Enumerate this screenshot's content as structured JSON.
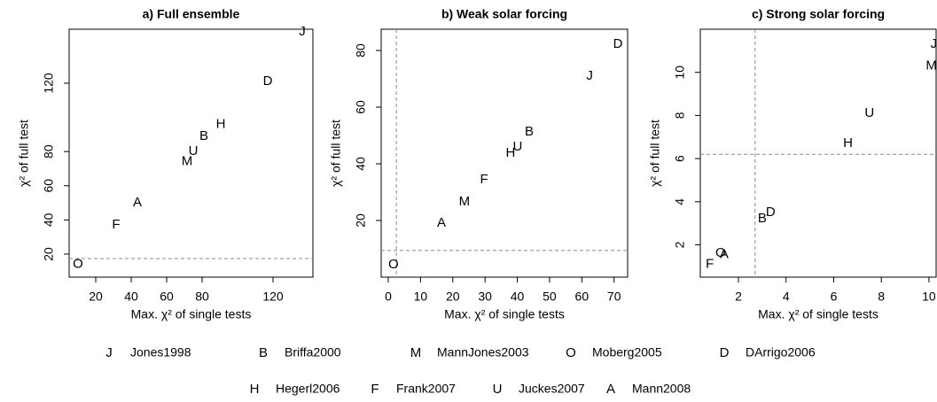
{
  "chart_data": [
    {
      "type": "scatter",
      "title": "a) Full ensemble",
      "xlabel": "Max. χ² of single tests",
      "ylabel": "χ² of full test",
      "xlim": [
        5,
        142.5
      ],
      "ylim": [
        6.5,
        151.6
      ],
      "xticks": [
        20,
        40,
        60,
        80,
        120
      ],
      "yticks": [
        20,
        40,
        60,
        80,
        120
      ],
      "hline": 17.4,
      "series": [
        {
          "name": "Jones1998",
          "marker": "J",
          "color": "#e8141c",
          "x": [
            136.5
          ],
          "values": [
            150
          ]
        },
        {
          "name": "Briffa2000",
          "marker": "B",
          "color": "#e7298a",
          "x": [
            81
          ],
          "values": [
            89
          ]
        },
        {
          "name": "MannJones2003",
          "marker": "M",
          "color": "#f5873a",
          "x": [
            71.5
          ],
          "values": [
            74
          ]
        },
        {
          "name": "Moberg2005",
          "marker": "O",
          "color": "#a6761d",
          "x": [
            10
          ],
          "values": [
            14
          ]
        },
        {
          "name": "DArrigo2006",
          "marker": "D",
          "color": "#1a9e1a",
          "x": [
            117
          ],
          "values": [
            121
          ]
        },
        {
          "name": "Hegerl2006",
          "marker": "H",
          "color": "#b85ce8",
          "x": [
            90.5
          ],
          "values": [
            96
          ]
        },
        {
          "name": "Frank2007",
          "marker": "F",
          "color": "#8a8a8a",
          "x": [
            31.5
          ],
          "values": [
            37
          ]
        },
        {
          "name": "Juckes2007",
          "marker": "U",
          "color": "#000000",
          "x": [
            75
          ],
          "values": [
            80
          ]
        },
        {
          "name": "Mann2008",
          "marker": "A",
          "color": "#1a1ad6",
          "x": [
            43.5
          ],
          "values": [
            50
          ]
        }
      ]
    },
    {
      "type": "scatter",
      "title": "b) Weak solar forcing",
      "xlabel": "Max. χ² of single tests",
      "ylabel": "χ² of full test",
      "xlim": [
        -2.2,
        74.2
      ],
      "ylim": [
        0,
        87.5
      ],
      "xticks": [
        0,
        10,
        20,
        30,
        40,
        50,
        60,
        70
      ],
      "yticks": [
        20,
        40,
        60,
        80
      ],
      "hline": 9.4,
      "vline": 2.5,
      "series": [
        {
          "name": "Jones1998",
          "marker": "J",
          "color": "#e8141c",
          "x": [
            62.4
          ],
          "values": [
            70.9
          ]
        },
        {
          "name": "Briffa2000",
          "marker": "B",
          "color": "#e7298a",
          "x": [
            43.7
          ],
          "values": [
            51.2
          ]
        },
        {
          "name": "MannJones2003",
          "marker": "M",
          "color": "#f5873a",
          "x": [
            23.6
          ],
          "values": [
            26.6
          ]
        },
        {
          "name": "Moberg2005",
          "marker": "O",
          "color": "#a6761d",
          "x": [
            1.6
          ],
          "values": [
            4.4
          ]
        },
        {
          "name": "DArrigo2006",
          "marker": "D",
          "color": "#1a9e1a",
          "x": [
            71.2
          ],
          "values": [
            82.2
          ]
        },
        {
          "name": "Hegerl2006",
          "marker": "H",
          "color": "#b85ce8",
          "x": [
            37.9
          ],
          "values": [
            43.8
          ]
        },
        {
          "name": "Frank2007",
          "marker": "F",
          "color": "#8a8a8a",
          "x": [
            29.7
          ],
          "values": [
            34.4
          ]
        },
        {
          "name": "Juckes2007",
          "marker": "U",
          "color": "#000000",
          "x": [
            40.1
          ],
          "values": [
            45.9
          ]
        },
        {
          "name": "Mann2008",
          "marker": "A",
          "color": "#1a1ad6",
          "x": [
            16.5
          ],
          "values": [
            19
          ]
        }
      ]
    },
    {
      "type": "scatter",
      "title": "c) Strong solar forcing",
      "xlabel": "Max. χ² of single tests",
      "ylabel": "χ² of full test",
      "xlim": [
        0.4,
        10.3
      ],
      "ylim": [
        0.5,
        12
      ],
      "xticks": [
        2,
        4,
        6,
        8,
        10
      ],
      "yticks": [
        2,
        4,
        6,
        8,
        10
      ],
      "hline": 6.2,
      "vline": 2.7,
      "series": [
        {
          "name": "Jones1998",
          "marker": "J",
          "color": "#e8141c",
          "x": [
            10.2
          ],
          "values": [
            11.3
          ]
        },
        {
          "name": "Briffa2000",
          "marker": "B",
          "color": "#e7298a",
          "x": [
            3.0
          ],
          "values": [
            3.2
          ]
        },
        {
          "name": "MannJones2003",
          "marker": "M",
          "color": "#f5873a",
          "x": [
            10.1
          ],
          "values": [
            10.3
          ]
        },
        {
          "name": "Moberg2005",
          "marker": "O",
          "color": "#a6761d",
          "x": [
            1.25
          ],
          "values": [
            1.6
          ]
        },
        {
          "name": "DArrigo2006",
          "marker": "D",
          "color": "#1a9e1a",
          "x": [
            3.35
          ],
          "values": [
            3.5
          ]
        },
        {
          "name": "Hegerl2006",
          "marker": "H",
          "color": "#b85ce8",
          "x": [
            6.6
          ],
          "values": [
            6.7
          ]
        },
        {
          "name": "Frank2007",
          "marker": "F",
          "color": "#8a8a8a",
          "x": [
            0.8
          ],
          "values": [
            1.1
          ]
        },
        {
          "name": "Juckes2007",
          "marker": "U",
          "color": "#000000",
          "x": [
            7.5
          ],
          "values": [
            8.1
          ]
        },
        {
          "name": "Mann2008",
          "marker": "A",
          "color": "#1a1ad6",
          "x": [
            1.4
          ],
          "values": [
            1.55
          ]
        }
      ]
    }
  ]
}
